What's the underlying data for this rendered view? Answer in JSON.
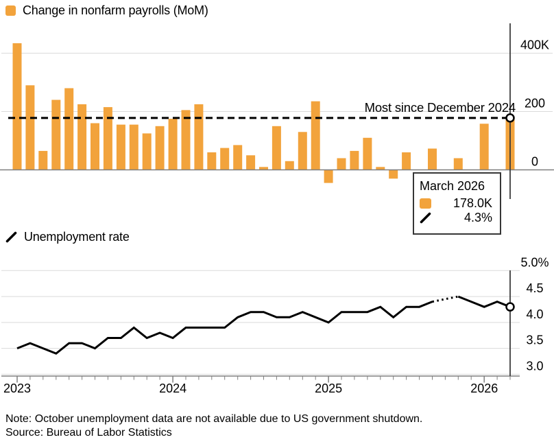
{
  "colors": {
    "bar": "#F2A33C",
    "line": "#000000",
    "grid": "#DADADA",
    "axis": "#7F7F7F",
    "crosshair": "#3C3C3C",
    "tooltip_border": "#363636",
    "background": "#FFFFFF"
  },
  "payrolls": {
    "legend_label": "Change in nonfarm payrolls (MoM)",
    "annotation": "Most since December 2024"
  },
  "unemployment": {
    "legend_label": "Unemployment rate"
  },
  "tooltip": {
    "title": "March 2026",
    "payrolls_value": "178.0K",
    "unemployment_value": "4.3%"
  },
  "note": "Note: October unemployment data are not available due to US government shutdown.",
  "source": "Source: Bureau of Labor Statistics",
  "chart_data": [
    {
      "type": "bar",
      "title": "Change in nonfarm payrolls (MoM)",
      "unit": "thousands of jobs",
      "x": [
        "2023-01",
        "2023-02",
        "2023-03",
        "2023-04",
        "2023-05",
        "2023-06",
        "2023-07",
        "2023-08",
        "2023-09",
        "2023-10",
        "2023-11",
        "2023-12",
        "2024-01",
        "2024-02",
        "2024-03",
        "2024-04",
        "2024-05",
        "2024-06",
        "2024-07",
        "2024-08",
        "2024-09",
        "2024-10",
        "2024-11",
        "2024-12",
        "2025-01",
        "2025-02",
        "2025-03",
        "2025-04",
        "2025-05",
        "2025-06",
        "2025-07",
        "2025-08",
        "2025-09",
        "2025-10",
        "2025-11",
        "2025-12",
        "2026-01",
        "2026-02",
        "2026-03"
      ],
      "values": [
        434,
        290,
        65,
        240,
        280,
        225,
        160,
        215,
        155,
        155,
        125,
        150,
        175,
        205,
        225,
        60,
        75,
        85,
        50,
        10,
        150,
        30,
        130,
        235,
        -45,
        40,
        65,
        110,
        10,
        -30,
        60,
        null,
        73,
        null,
        40,
        null,
        158,
        null,
        178
      ],
      "yticks": [
        {
          "value": 400,
          "label": "400K"
        },
        {
          "value": 200,
          "label": "200"
        },
        {
          "value": 0,
          "label": "0"
        }
      ],
      "ylim": [
        -100,
        500
      ],
      "grid": "on",
      "legend_position": "top-left",
      "reference_line": {
        "value": 178,
        "style": "dashed",
        "annotation": "Most since December 2024"
      },
      "highlight_point": {
        "x": "2026-03",
        "value": 178.0,
        "label": "178.0K",
        "marker": "open-circle"
      },
      "missing_months": [
        "2025-08",
        "2025-10",
        "2025-12",
        "2026-02"
      ]
    },
    {
      "type": "line",
      "title": "Unemployment rate",
      "unit": "percent",
      "x": [
        "2023-01",
        "2023-02",
        "2023-03",
        "2023-04",
        "2023-05",
        "2023-06",
        "2023-07",
        "2023-08",
        "2023-09",
        "2023-10",
        "2023-11",
        "2023-12",
        "2024-01",
        "2024-02",
        "2024-03",
        "2024-04",
        "2024-05",
        "2024-06",
        "2024-07",
        "2024-08",
        "2024-09",
        "2024-10",
        "2024-11",
        "2024-12",
        "2025-01",
        "2025-02",
        "2025-03",
        "2025-04",
        "2025-05",
        "2025-06",
        "2025-07",
        "2025-08",
        "2025-09",
        "2025-10",
        "2025-11",
        "2025-12",
        "2026-01",
        "2026-02",
        "2026-03"
      ],
      "values": [
        3.5,
        3.6,
        3.5,
        3.4,
        3.6,
        3.6,
        3.5,
        3.7,
        3.7,
        3.9,
        3.7,
        3.8,
        3.7,
        3.9,
        3.9,
        3.9,
        3.9,
        4.1,
        4.2,
        4.2,
        4.1,
        4.1,
        4.2,
        4.1,
        4.0,
        4.2,
        4.2,
        4.2,
        4.3,
        4.1,
        4.3,
        4.3,
        4.4,
        null,
        4.5,
        4.4,
        4.3,
        4.4,
        4.3
      ],
      "yticks": [
        {
          "value": 5.0,
          "label": "5.0%"
        },
        {
          "value": 4.5,
          "label": "4.5"
        },
        {
          "value": 4.0,
          "label": "4.0"
        },
        {
          "value": 3.5,
          "label": "3.5"
        },
        {
          "value": 3.0,
          "label": "3.0"
        }
      ],
      "ylim": [
        3.0,
        5.0
      ],
      "grid": "on",
      "xticks": [
        "2023",
        "2024",
        "2025",
        "2026"
      ],
      "dotted_segment": {
        "from": "2025-09",
        "to": "2025-11",
        "style": "dotted"
      },
      "missing_months": [
        "2025-10"
      ],
      "highlight_point": {
        "x": "2026-03",
        "value": 4.3,
        "label": "4.3%",
        "marker": "open-circle"
      }
    }
  ]
}
